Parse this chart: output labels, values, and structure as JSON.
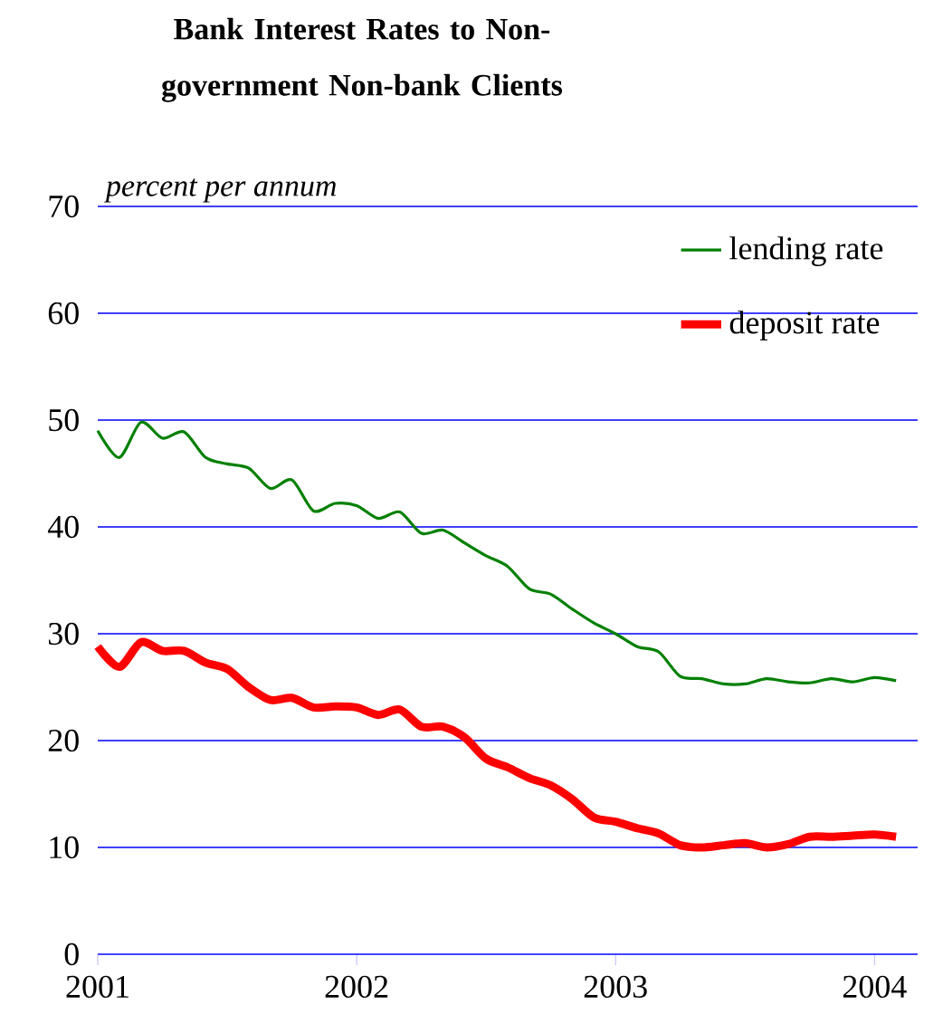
{
  "chart_data": {
    "type": "line",
    "title": "Bank Interest Rates to Non- government Non-bank Clients",
    "ylabel": "percent per annum",
    "x": [
      "2001-01",
      "2001-02",
      "2001-03",
      "2001-04",
      "2001-05",
      "2001-06",
      "2001-07",
      "2001-08",
      "2001-09",
      "2001-10",
      "2001-11",
      "2001-12",
      "2002-01",
      "2002-02",
      "2002-03",
      "2002-04",
      "2002-05",
      "2002-06",
      "2002-07",
      "2002-08",
      "2002-09",
      "2002-10",
      "2002-11",
      "2002-12",
      "2003-01",
      "2003-02",
      "2003-03",
      "2003-04",
      "2003-05",
      "2003-06",
      "2003-07",
      "2003-08",
      "2003-09",
      "2003-10",
      "2003-11",
      "2003-12",
      "2004-01",
      "2004-02"
    ],
    "series": [
      {
        "name": "lending rate",
        "color": "#008000",
        "line_style": "solid",
        "values": [
          49.0,
          46.5,
          49.8,
          48.3,
          48.9,
          46.5,
          45.9,
          45.5,
          43.6,
          44.4,
          41.5,
          42.2,
          42.0,
          40.8,
          41.4,
          39.4,
          39.7,
          38.5,
          37.3,
          36.3,
          34.2,
          33.7,
          32.3,
          31.0,
          30.0,
          28.8,
          28.3,
          26.0,
          25.8,
          25.3,
          25.3,
          25.8,
          25.5,
          25.4,
          25.8,
          25.5,
          25.9,
          25.6
        ]
      },
      {
        "name": "deposit rate",
        "color": "#ff0000",
        "line_style": "solid",
        "values": [
          28.8,
          26.9,
          29.2,
          28.4,
          28.4,
          27.3,
          26.7,
          25.0,
          23.8,
          24.0,
          23.1,
          23.2,
          23.1,
          22.4,
          22.9,
          21.3,
          21.3,
          20.3,
          18.3,
          17.5,
          16.5,
          15.8,
          14.5,
          12.8,
          12.4,
          11.8,
          11.3,
          10.2,
          10.0,
          10.2,
          10.4,
          10.0,
          10.3,
          11.0,
          11.0,
          11.1,
          11.2,
          11.0
        ]
      }
    ],
    "xlim": [
      "2001-01",
      "2004-03"
    ],
    "xticks": [
      {
        "value": "2001-01",
        "label": "2001"
      },
      {
        "value": "2002-01",
        "label": "2002"
      },
      {
        "value": "2003-01",
        "label": "2003"
      },
      {
        "value": "2004-01",
        "label": "2004"
      }
    ],
    "ylim": [
      0,
      70
    ],
    "yticks": [
      0,
      10,
      20,
      30,
      40,
      50,
      60,
      70
    ],
    "grid": "y",
    "legend": "top right",
    "marker": "none"
  }
}
